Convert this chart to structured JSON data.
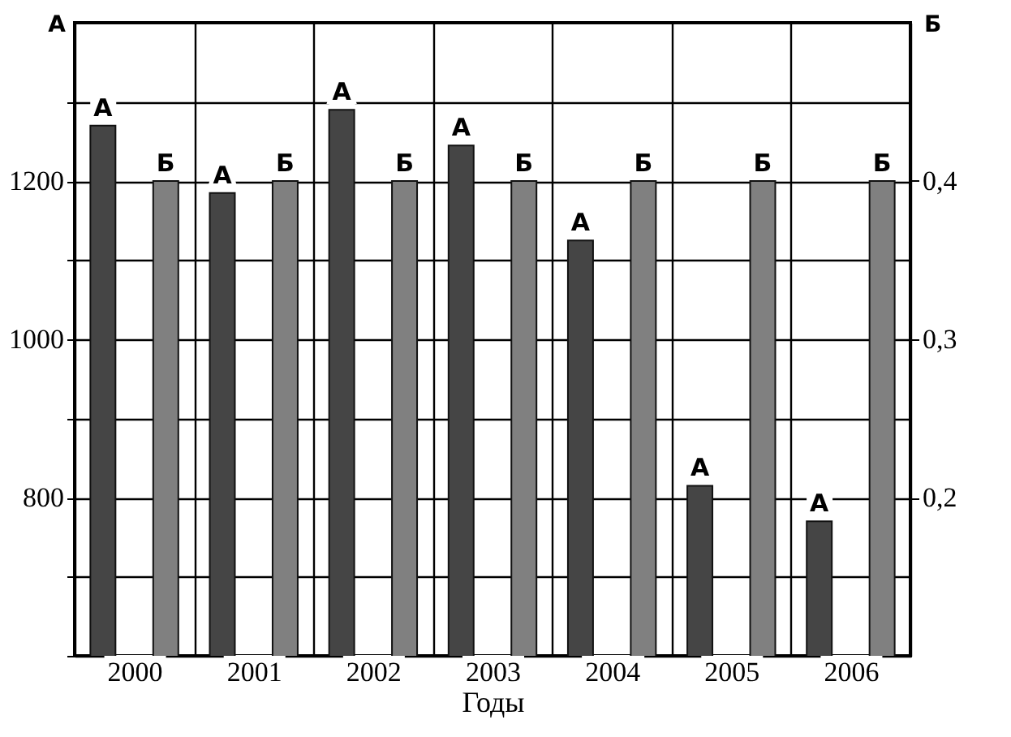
{
  "chart_data": {
    "type": "bar",
    "xlabel": "Годы",
    "ylabel": "А",
    "y2label": "Б",
    "categories": [
      "2000",
      "2001",
      "2002",
      "2003",
      "2004",
      "2005",
      "2006"
    ],
    "series": [
      {
        "name": "А",
        "color": "#454545",
        "values": [
          1270,
          1185,
          1290,
          1245,
          1125,
          815,
          770
        ]
      },
      {
        "name": "Б",
        "color": "#808080",
        "axis": "y2",
        "values": [
          0.4,
          0.4,
          0.4,
          0.4,
          0.4,
          0.4,
          0.4
        ]
      }
    ],
    "ylim": [
      600,
      1400
    ],
    "yticks": [
      {
        "value": 600,
        "label": null
      },
      {
        "value": 700,
        "label": null
      },
      800,
      {
        "value": 900,
        "label": null
      },
      1000,
      {
        "value": 1100,
        "label": null
      },
      1200,
      {
        "value": 1300,
        "label": null
      }
    ],
    "y2lim": [
      0.1,
      0.5
    ],
    "y2ticks": [
      {
        "value": 0.2,
        "label": "0,2"
      },
      {
        "value": 0.3,
        "label": "0,3"
      },
      {
        "value": 0.4,
        "label": "0,4"
      }
    ],
    "grid": true
  }
}
